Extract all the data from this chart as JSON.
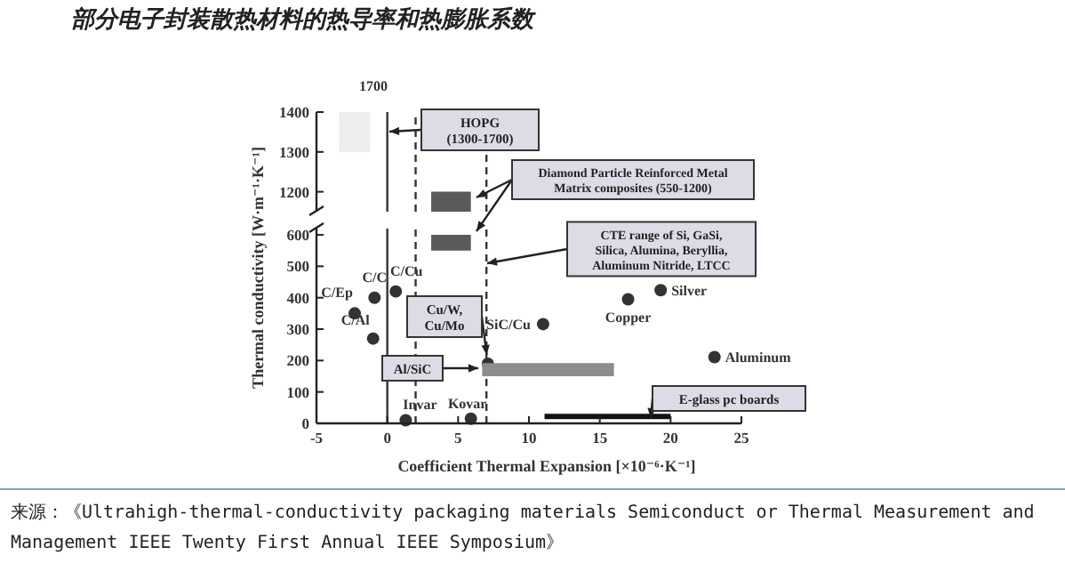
{
  "chart_data": [
    {
      "type": "scatter",
      "title": "部分电子封装散热材料的热导率和热膨胀系数",
      "xlim": [
        -5,
        25
      ],
      "ylim": [
        1150,
        1400
      ],
      "yticks": [
        1200,
        1300,
        1400
      ],
      "tick_labels": "y",
      "series": [
        {
          "type": "line",
          "color": "#eeeeee",
          "x": [
            -3.4,
            -1.2
          ],
          "values": [
            null,
            null
          ],
          "lower": [
            1300,
            1300
          ],
          "upper": [
            1400,
            1400
          ]
        },
        {
          "type": "line",
          "color": "#5a5a5a",
          "x": [
            3.1,
            5.9
          ],
          "values": [
            null,
            null
          ],
          "lower": [
            1150,
            1150
          ],
          "upper": [
            1200,
            1200
          ]
        }
      ],
      "ref_lines": [
        {
          "axis": "x",
          "value": 0,
          "color": "#333333",
          "line_style": "solid"
        },
        {
          "axis": "x",
          "value": 2,
          "color": "#333333",
          "line_style": "dashed"
        },
        {
          "axis": "x",
          "value": 7,
          "color": "#333333",
          "line_style": "dashed"
        }
      ],
      "annotations": [
        "1700",
        "HOPG (1300-1700)",
        "Diamond Particle Reinforced Metal Matrix composites (550-1200)"
      ]
    },
    {
      "type": "scatter",
      "xlabel": "Coefficient Thermal Expansion [×10⁻⁶·K⁻¹]",
      "ylabel": "Thermal conductivity [W·m⁻¹·K⁻¹]",
      "xlim": [
        -5,
        25
      ],
      "xticks": [
        -5,
        0,
        5,
        10,
        15,
        20,
        25
      ],
      "ylim": [
        0,
        620
      ],
      "yticks": [
        0,
        100,
        200,
        300,
        400,
        500,
        600
      ],
      "series": [
        {
          "type": "scatter",
          "marker": "circle",
          "color": "#333333",
          "x": [
            -2.3,
            -0.9,
            0.6,
            -1.0,
            1.3,
            5.9,
            7.1,
            11.0,
            17.0,
            19.3,
            23.1
          ],
          "values": [
            350,
            400,
            420,
            270,
            10,
            15,
            190,
            316,
            395,
            424,
            211
          ]
        },
        {
          "type": "line",
          "color": "#5a5a5a",
          "x": [
            3.1,
            5.9
          ],
          "values": [
            null,
            null
          ],
          "lower": [
            550,
            550
          ],
          "upper": [
            600,
            600
          ]
        },
        {
          "type": "line",
          "color": "#8c8c8c",
          "x": [
            6.7,
            16.0
          ],
          "values": [
            null,
            null
          ],
          "lower": [
            150,
            150
          ],
          "upper": [
            192,
            192
          ]
        },
        {
          "type": "line",
          "color": "#111111",
          "x": [
            11.1,
            20.0
          ],
          "values": [
            22,
            22
          ]
        }
      ],
      "ref_lines": [
        {
          "axis": "x",
          "value": 0,
          "color": "#333333",
          "line_style": "solid"
        },
        {
          "axis": "x",
          "value": 2,
          "color": "#333333",
          "line_style": "dashed"
        },
        {
          "axis": "x",
          "value": 7,
          "color": "#333333",
          "line_style": "dashed"
        }
      ],
      "annotations": [
        "CTE range of Si, GaSi, Silica, Alumina, Beryllia, Aluminum Nitride, LTCC",
        {
          "text": "Cu/W, Cu/Mo",
          "x": 7.1,
          "y": 190
        },
        "Al/SiC",
        "E-glass pc boards",
        {
          "text": "C/Ep",
          "x": -2.3,
          "y": 350
        },
        {
          "text": "C/C",
          "x": -0.9,
          "y": 400
        },
        {
          "text": "C/Cu",
          "x": 0.6,
          "y": 420
        },
        {
          "text": "C/Al",
          "x": -1.0,
          "y": 270
        },
        {
          "text": "Invar",
          "x": 1.3,
          "y": 10
        },
        {
          "text": "Kovar",
          "x": 5.9,
          "y": 15
        },
        {
          "text": "SiC/Cu",
          "x": 11.0,
          "y": 316
        },
        {
          "text": "Copper",
          "x": 17.0,
          "y": 395
        },
        {
          "text": "Silver",
          "x": 19.3,
          "y": 424
        },
        {
          "text": "Aluminum",
          "x": 23.1,
          "y": 211
        },
        "来源：《Ultrahigh-thermal-conductivity packaging materials Semiconduct or Thermal Measurement and Management IEEE Twenty First Annual IEEE Symposium》"
      ]
    }
  ]
}
